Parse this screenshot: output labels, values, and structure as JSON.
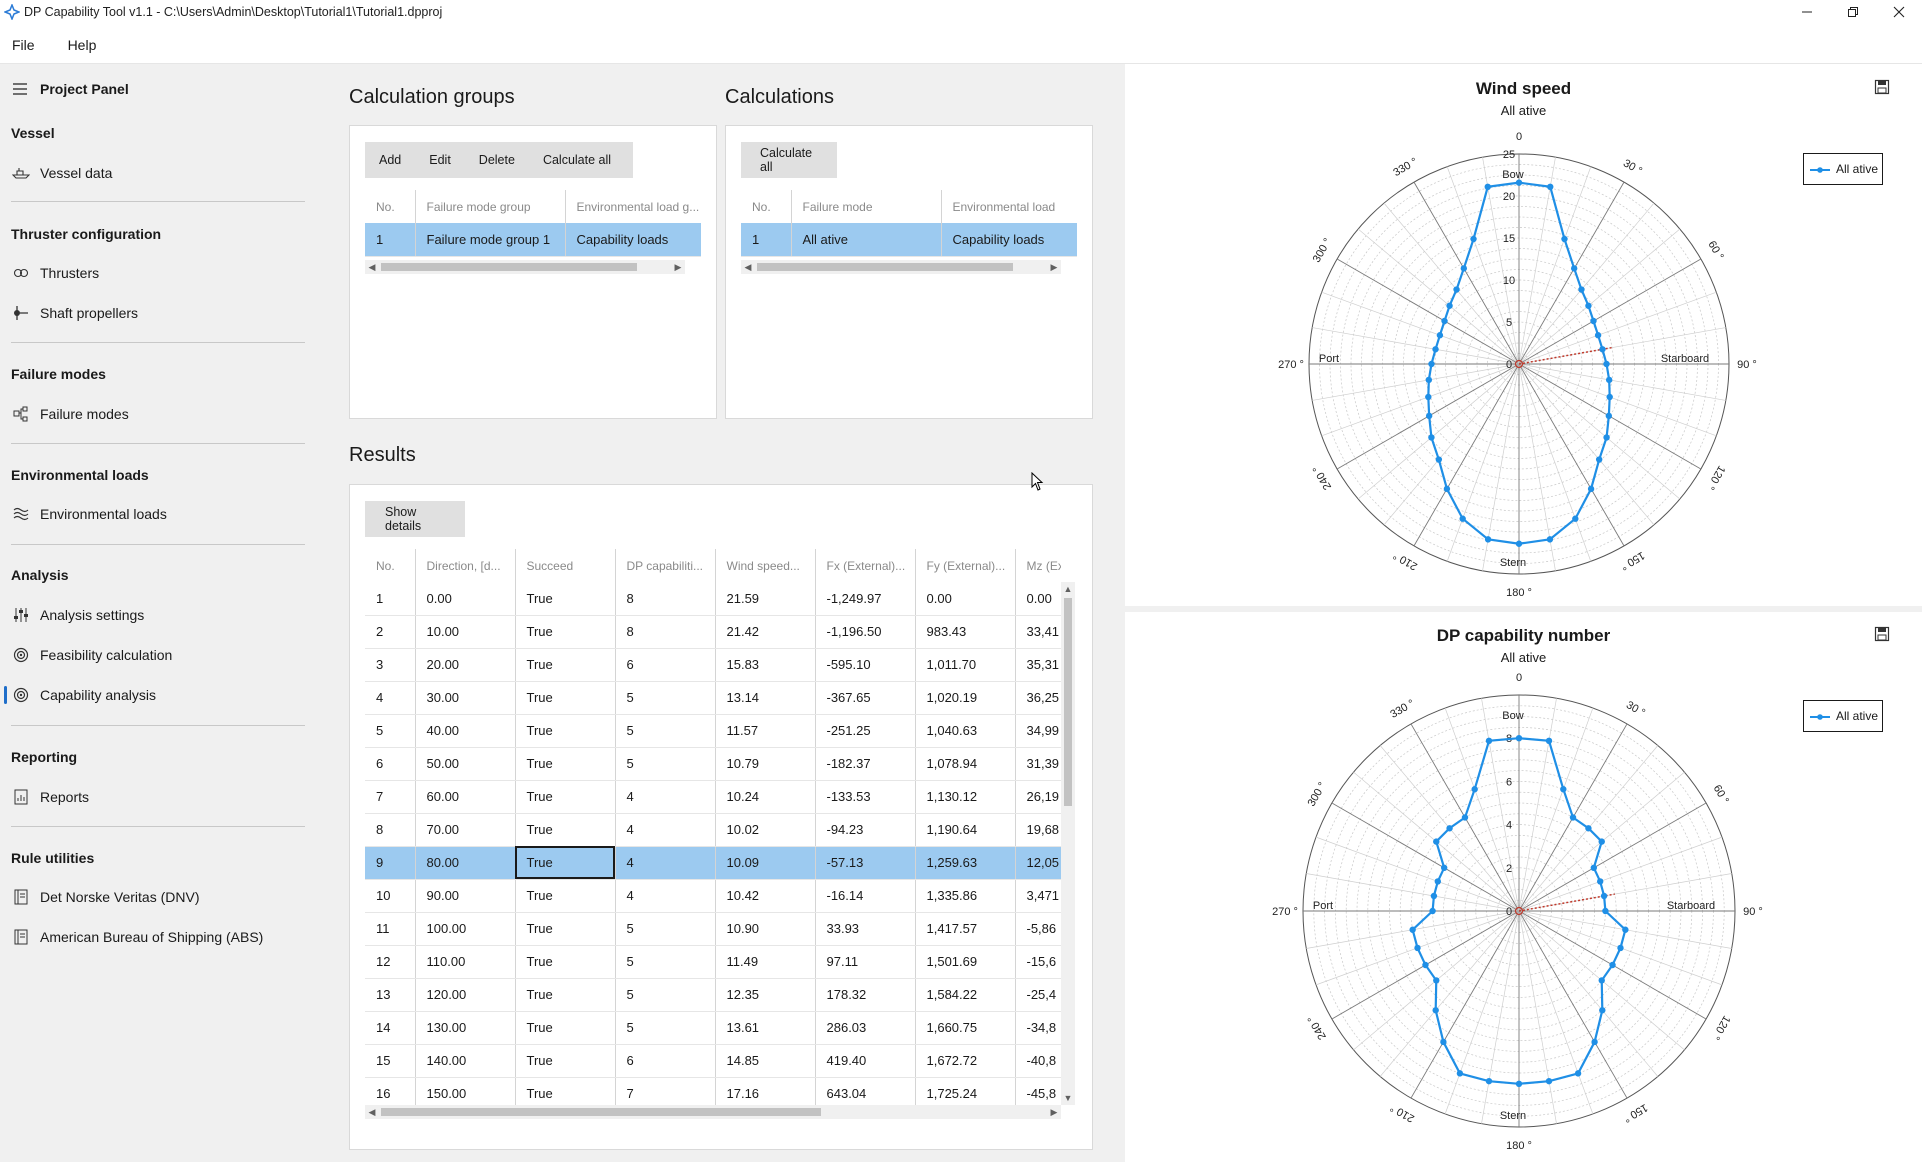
{
  "window": {
    "title": "DP Capability Tool v1.1 - C:\\Users\\Admin\\Desktop\\Tutorial1\\Tutorial1.dpproj"
  },
  "menu": {
    "file": "File",
    "help": "Help"
  },
  "sidebar": {
    "header": "Project Panel",
    "sections": [
      {
        "label": "Vessel",
        "items": [
          {
            "label": "Vessel data",
            "icon": "ship-icon"
          }
        ]
      },
      {
        "label": "Thruster configuration",
        "items": [
          {
            "label": "Thrusters",
            "icon": "thruster-icon"
          },
          {
            "label": "Shaft propellers",
            "icon": "propeller-icon"
          }
        ]
      },
      {
        "label": "Failure modes",
        "items": [
          {
            "label": "Failure modes",
            "icon": "tree-icon"
          }
        ]
      },
      {
        "label": "Environmental loads",
        "items": [
          {
            "label": "Environmental loads",
            "icon": "waves-icon"
          }
        ]
      },
      {
        "label": "Analysis",
        "items": [
          {
            "label": "Analysis settings",
            "icon": "sliders-icon"
          },
          {
            "label": "Feasibility calculation",
            "icon": "target-icon"
          },
          {
            "label": "Capability analysis",
            "icon": "target-icon"
          }
        ]
      },
      {
        "label": "Reporting",
        "items": [
          {
            "label": "Reports",
            "icon": "report-icon"
          }
        ]
      },
      {
        "label": "Rule utilities",
        "items": [
          {
            "label": "Det Norske Veritas (DNV)",
            "icon": "book-icon"
          },
          {
            "label": "American Bureau of Shipping (ABS)",
            "icon": "book-icon"
          }
        ]
      }
    ],
    "active_item": "Capability analysis"
  },
  "calc_groups": {
    "title": "Calculation groups",
    "buttons": {
      "add": "Add",
      "edit": "Edit",
      "delete": "Delete",
      "calculate_all": "Calculate all"
    },
    "columns": [
      "No.",
      "Failure mode group",
      "Environmental load g..."
    ],
    "rows": [
      [
        "1",
        "Failure mode group 1",
        "Capability loads"
      ]
    ]
  },
  "calculations": {
    "title": "Calculations",
    "buttons": {
      "calculate_all": "Calculate all"
    },
    "columns": [
      "No.",
      "Failure mode",
      "Environmental load"
    ],
    "rows": [
      [
        "1",
        "All ative",
        "Capability loads"
      ]
    ]
  },
  "results": {
    "title": "Results",
    "buttons": {
      "show_details": "Show details"
    },
    "columns": [
      "No.",
      "Direction, [d...",
      "Succeed",
      "DP capabiliti...",
      "Wind speed...",
      "Fx (External)...",
      "Fy (External)...",
      "Mz (Exter"
    ],
    "rows": [
      [
        "1",
        "0.00",
        "True",
        "8",
        "21.59",
        "-1,249.97",
        "0.00",
        "0.00"
      ],
      [
        "2",
        "10.00",
        "True",
        "8",
        "21.42",
        "-1,196.50",
        "983.43",
        "33,41"
      ],
      [
        "3",
        "20.00",
        "True",
        "6",
        "15.83",
        "-595.10",
        "1,011.70",
        "35,31"
      ],
      [
        "4",
        "30.00",
        "True",
        "5",
        "13.14",
        "-367.65",
        "1,020.19",
        "36,25"
      ],
      [
        "5",
        "40.00",
        "True",
        "5",
        "11.57",
        "-251.25",
        "1,040.63",
        "34,99"
      ],
      [
        "6",
        "50.00",
        "True",
        "5",
        "10.79",
        "-182.37",
        "1,078.94",
        "31,39"
      ],
      [
        "7",
        "60.00",
        "True",
        "4",
        "10.24",
        "-133.53",
        "1,130.12",
        "26,19"
      ],
      [
        "8",
        "70.00",
        "True",
        "4",
        "10.02",
        "-94.23",
        "1,190.64",
        "19,68"
      ],
      [
        "9",
        "80.00",
        "True",
        "4",
        "10.09",
        "-57.13",
        "1,259.63",
        "12,05"
      ],
      [
        "10",
        "90.00",
        "True",
        "4",
        "10.42",
        "-16.14",
        "1,335.86",
        "3,471"
      ],
      [
        "11",
        "100.00",
        "True",
        "5",
        "10.90",
        "33.93",
        "1,417.57",
        "-5,86"
      ],
      [
        "12",
        "110.00",
        "True",
        "5",
        "11.49",
        "97.11",
        "1,501.69",
        "-15,6"
      ],
      [
        "13",
        "120.00",
        "True",
        "5",
        "12.35",
        "178.32",
        "1,584.22",
        "-25,4"
      ],
      [
        "14",
        "130.00",
        "True",
        "5",
        "13.61",
        "286.03",
        "1,660.75",
        "-34,8"
      ],
      [
        "15",
        "140.00",
        "True",
        "6",
        "14.85",
        "419.40",
        "1,672.72",
        "-40,8"
      ],
      [
        "16",
        "150.00",
        "True",
        "7",
        "17.16",
        "643.04",
        "1,725.24",
        "-45,8"
      ]
    ],
    "selected_row": 8
  },
  "chart_data": [
    {
      "type": "polar-line",
      "title": "Wind speed",
      "subtitle": "All ative",
      "legend": "All ative",
      "legend_position": "top-right",
      "color": "#1f8fe6",
      "radial_max": 25,
      "radial_ticks": [
        "0",
        "5",
        "10",
        "15",
        "20",
        "25"
      ],
      "angle_labels": [
        "0",
        "30 °",
        "60 °",
        "90 °",
        "120 °",
        "150 °",
        "180 °",
        "210 °",
        "240 °",
        "270 °",
        "300 °",
        "330 °"
      ],
      "direction_labels": {
        "bow": "Bow",
        "starboard": "Starboard",
        "stern": "Stern",
        "port": "Port"
      },
      "direction_marker_deg": 80,
      "angles_deg": [
        0,
        10,
        20,
        30,
        40,
        50,
        60,
        70,
        80,
        90,
        100,
        110,
        120,
        130,
        140,
        150,
        160,
        170,
        180,
        190,
        200,
        210,
        220,
        230,
        240,
        250,
        260,
        270,
        280,
        290,
        300,
        310,
        320,
        330,
        340,
        350
      ],
      "values": [
        21.59,
        21.42,
        15.83,
        13.14,
        11.57,
        10.79,
        10.24,
        10.02,
        10.09,
        10.42,
        10.9,
        11.49,
        12.35,
        13.61,
        14.85,
        17.16,
        19.6,
        21.2,
        21.4,
        21.2,
        19.6,
        17.16,
        14.85,
        13.61,
        12.35,
        11.49,
        10.9,
        10.42,
        10.09,
        10.02,
        10.24,
        10.79,
        11.57,
        13.14,
        15.83,
        21.42
      ]
    },
    {
      "type": "polar-line",
      "title": "DP capability number",
      "subtitle": "All ative",
      "legend": "All ative",
      "legend_position": "top-right",
      "color": "#1f8fe6",
      "radial_max": 10,
      "radial_ticks": [
        "0",
        "2",
        "4",
        "6",
        "8"
      ],
      "angle_labels": [
        "0",
        "30 °",
        "60 °",
        "90 °",
        "120 °",
        "150 °",
        "180 °",
        "210 °",
        "240 °",
        "270 °",
        "300 °",
        "330 °"
      ],
      "direction_labels": {
        "bow": "Bow",
        "starboard": "Starboard",
        "stern": "Stern",
        "port": "Port"
      },
      "direction_marker_deg": 80,
      "angles_deg": [
        0,
        10,
        20,
        30,
        40,
        50,
        60,
        70,
        80,
        90,
        100,
        110,
        120,
        130,
        140,
        150,
        160,
        170,
        180,
        190,
        200,
        210,
        220,
        230,
        240,
        250,
        260,
        270,
        280,
        290,
        300,
        310,
        320,
        330,
        340,
        350
      ],
      "values": [
        8,
        8,
        6,
        5,
        5,
        5,
        4,
        4,
        4,
        4,
        5,
        5,
        5,
        5,
        6,
        7,
        8,
        8,
        8,
        8,
        8,
        7,
        6,
        5,
        5,
        5,
        5,
        4,
        4,
        4,
        4,
        5,
        5,
        5,
        6,
        8
      ]
    }
  ]
}
